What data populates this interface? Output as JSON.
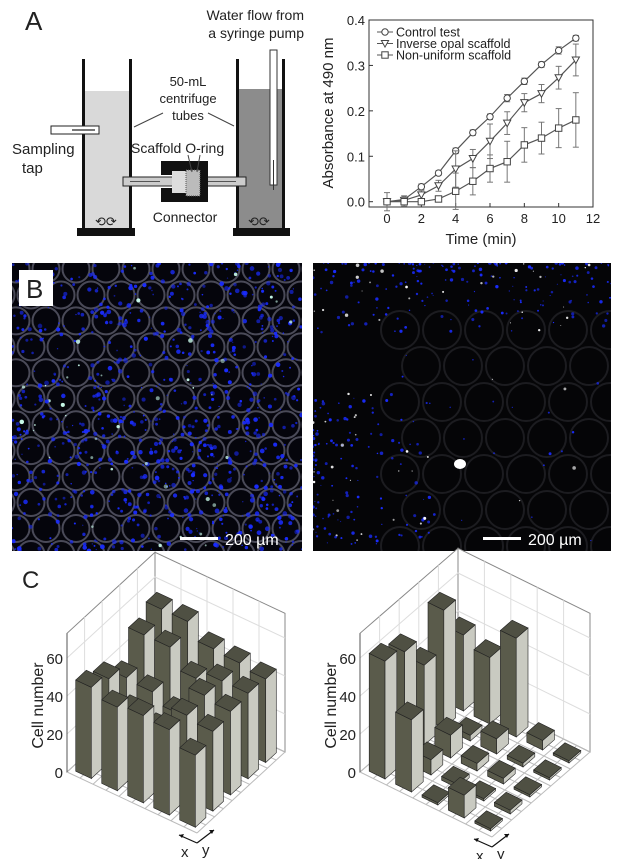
{
  "panels": {
    "A": {
      "label": "A",
      "diagram": {
        "water_flow_line1": "Water flow from",
        "water_flow_line2": "a syringe pump",
        "tubes_line1": "50-mL",
        "tubes_line2": "centrifuge",
        "tubes_line3": "tubes",
        "sampling_line1": "Sampling",
        "sampling_line2": "tap",
        "scaffold": "Scaffold O-ring",
        "connector": "Connector"
      }
    },
    "B": {
      "label": "B",
      "scale_bar_left": "200 µm",
      "scale_bar_right": "200 µm"
    },
    "C": {
      "label": "C"
    }
  },
  "chart_data": [
    {
      "type": "line",
      "xlabel": "Time (min)",
      "ylabel": "Absorbance at 490 nm",
      "xlim": [
        -1,
        12
      ],
      "ylim": [
        -0.01,
        0.4
      ],
      "xticks": [
        "0",
        "2",
        "4",
        "6",
        "8",
        "10",
        "12"
      ],
      "yticks": [
        "0.0",
        "0.1",
        "0.2",
        "0.3",
        "0.4"
      ],
      "legend_position": "top-left",
      "x": [
        0,
        1,
        2,
        3,
        4,
        5,
        6,
        7,
        8,
        9,
        10,
        11
      ],
      "series": [
        {
          "name": "Control test",
          "marker": "circle",
          "values": [
            0,
            0.005,
            0.033,
            0.063,
            0.112,
            0.152,
            0.187,
            0.228,
            0.265,
            0.302,
            0.333,
            0.36
          ],
          "errors": [
            0.003,
            0.005,
            0.006,
            0.005,
            0.006,
            0.006,
            0.006,
            0.008,
            0.007,
            0.006,
            0.008,
            0.006
          ]
        },
        {
          "name": "Inverse opal scaffold",
          "marker": "triangle-down",
          "values": [
            0,
            0.003,
            0.015,
            0.035,
            0.072,
            0.095,
            0.133,
            0.173,
            0.218,
            0.238,
            0.273,
            0.312
          ],
          "errors": [
            0.003,
            0.01,
            0.01,
            0.012,
            0.04,
            0.02,
            0.038,
            0.025,
            0.02,
            0.02,
            0.025,
            0.035
          ]
        },
        {
          "name": "Non-uniform scaffold",
          "marker": "square",
          "values": [
            0,
            0,
            0,
            0.006,
            0.023,
            0.045,
            0.073,
            0.088,
            0.125,
            0.14,
            0.162,
            0.18
          ],
          "errors": [
            0.02,
            0.01,
            0.003,
            0.005,
            0.04,
            0.03,
            0.03,
            0.045,
            0.038,
            0.035,
            0.043,
            0.06
          ]
        }
      ]
    },
    {
      "type": "bar3d",
      "zlabel": "Cell number",
      "xlabel": "x",
      "ylabel": "y",
      "zticks": [
        "0",
        "20",
        "40",
        "60"
      ],
      "zlim": [
        0,
        73
      ],
      "grid": true,
      "values": [
        [
          38,
          42,
          44,
          45,
          44
        ],
        [
          45,
          44,
          46,
          45,
          46
        ],
        [
          46,
          30,
          30,
          40,
          47
        ],
        [
          44,
          33,
          35,
          50,
          55
        ],
        [
          48,
          44,
          36,
          50,
          55
        ]
      ]
    },
    {
      "type": "bar3d",
      "zlabel": "Cell number",
      "xlabel": "x",
      "ylabel": "y",
      "zticks": [
        "0",
        "20",
        "40",
        "60"
      ],
      "zlim": [
        0,
        73
      ],
      "grid": true,
      "values": [
        [
          0,
          2,
          1,
          0,
          1
        ],
        [
          12,
          0,
          3,
          2,
          5
        ],
        [
          1,
          2,
          4,
          8,
          52
        ],
        [
          38,
          8,
          12,
          3,
          35
        ],
        [
          62,
          58,
          42,
          62,
          40
        ]
      ]
    }
  ],
  "colors": {
    "bar_dark": "#5a5b4b",
    "bar_light": "#c9cac1",
    "bar_top": "#4f5043",
    "fluorescence": "#1a2cff"
  }
}
